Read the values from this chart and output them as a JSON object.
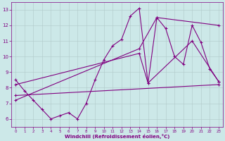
{
  "xlabel": "Windchill (Refroidissement éolien,°C)",
  "bg_color": "#cce8e8",
  "line_color": "#800080",
  "grid_color": "#b0c8c8",
  "xlim": [
    -0.5,
    23.5
  ],
  "ylim": [
    5.5,
    13.5
  ],
  "yticks": [
    6,
    7,
    8,
    9,
    10,
    11,
    12,
    13
  ],
  "xticks": [
    0,
    1,
    2,
    3,
    4,
    5,
    6,
    7,
    8,
    9,
    10,
    11,
    12,
    13,
    14,
    15,
    16,
    17,
    18,
    19,
    20,
    21,
    22,
    23
  ],
  "main_line": {
    "x": [
      0,
      1,
      2,
      3,
      4,
      5,
      6,
      7,
      8,
      9,
      10,
      11,
      12,
      13,
      14,
      15,
      16,
      17,
      18,
      19,
      20,
      21,
      22,
      23
    ],
    "y": [
      8.5,
      7.8,
      7.2,
      6.6,
      6.0,
      6.2,
      6.4,
      6.0,
      7.0,
      8.5,
      9.8,
      10.7,
      11.1,
      12.6,
      13.1,
      8.3,
      12.5,
      11.8,
      10.0,
      9.5,
      12.0,
      10.9,
      9.2,
      8.4
    ]
  },
  "trend_lines": [
    {
      "x": [
        0,
        23
      ],
      "y": [
        7.5,
        8.2
      ]
    },
    {
      "x": [
        0,
        14,
        16,
        23
      ],
      "y": [
        7.2,
        10.5,
        12.5,
        12.0
      ]
    },
    {
      "x": [
        0,
        14,
        15,
        20,
        23
      ],
      "y": [
        8.2,
        10.2,
        8.3,
        11.0,
        8.4
      ]
    }
  ]
}
